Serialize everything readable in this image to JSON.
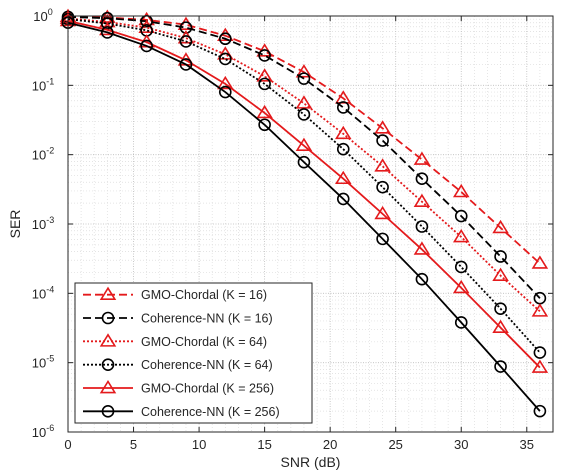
{
  "chart_data": {
    "type": "line",
    "title": "",
    "xlabel": "SNR (dB)",
    "ylabel": "SER",
    "yscale": "log",
    "xlim": [
      0,
      37
    ],
    "ylim": [
      1e-06,
      1
    ],
    "grid": true,
    "minor_grid": true,
    "legend_position": "bottom-left",
    "x": [
      0,
      3,
      6,
      9,
      12,
      15,
      18,
      21,
      24,
      27,
      30,
      33,
      36
    ],
    "x_ticks": [
      "0",
      "5",
      "10",
      "15",
      "20",
      "25",
      "30",
      "35"
    ],
    "x_tick_values": [
      0,
      5,
      10,
      15,
      20,
      25,
      30,
      35
    ],
    "y_tick_values": [
      1e-06,
      1e-05,
      0.0001,
      0.001,
      0.01,
      0.1,
      1
    ],
    "y_tick_exponents": [
      "-6",
      "-5",
      "-4",
      "-3",
      "-2",
      "-1",
      "0"
    ],
    "y_tick_base": "10",
    "series": [
      {
        "name": "GMO-Chordal (K = 16)",
        "color": "#e41a1c",
        "dash": "dashed",
        "marker": "triangle",
        "values": [
          0.98,
          0.95,
          0.88,
          0.75,
          0.52,
          0.31,
          0.155,
          0.065,
          0.024,
          0.0085,
          0.0029,
          0.00088,
          0.00027
        ]
      },
      {
        "name": "Coherence-NN (K = 16)",
        "color": "#000000",
        "dash": "dashed",
        "marker": "circle",
        "values": [
          0.97,
          0.93,
          0.84,
          0.68,
          0.47,
          0.27,
          0.125,
          0.048,
          0.016,
          0.0045,
          0.0013,
          0.00034,
          8.5e-05
        ]
      },
      {
        "name": "GMO-Chordal (K = 64)",
        "color": "#e41a1c",
        "dash": "dotted",
        "marker": "triangle",
        "values": [
          0.92,
          0.82,
          0.68,
          0.48,
          0.28,
          0.135,
          0.055,
          0.02,
          0.0068,
          0.0021,
          0.00065,
          0.00018,
          5.5e-05
        ]
      },
      {
        "name": "Coherence-NN (K = 64)",
        "color": "#000000",
        "dash": "dotted",
        "marker": "circle",
        "values": [
          0.9,
          0.78,
          0.62,
          0.43,
          0.24,
          0.105,
          0.038,
          0.012,
          0.0034,
          0.00092,
          0.00024,
          6e-05,
          1.4e-05
        ]
      },
      {
        "name": "GMO-Chordal (K = 256)",
        "color": "#e41a1c",
        "dash": "solid",
        "marker": "triangle",
        "values": [
          0.85,
          0.63,
          0.42,
          0.23,
          0.105,
          0.04,
          0.0135,
          0.0045,
          0.0014,
          0.00043,
          0.00012,
          3.2e-05,
          8.5e-06
        ]
      },
      {
        "name": "Coherence-NN (K = 256)",
        "color": "#000000",
        "dash": "solid",
        "marker": "circle",
        "values": [
          0.8,
          0.58,
          0.37,
          0.2,
          0.08,
          0.027,
          0.0078,
          0.0023,
          0.00061,
          0.00016,
          3.8e-05,
          8.8e-06,
          2e-06
        ]
      }
    ]
  }
}
